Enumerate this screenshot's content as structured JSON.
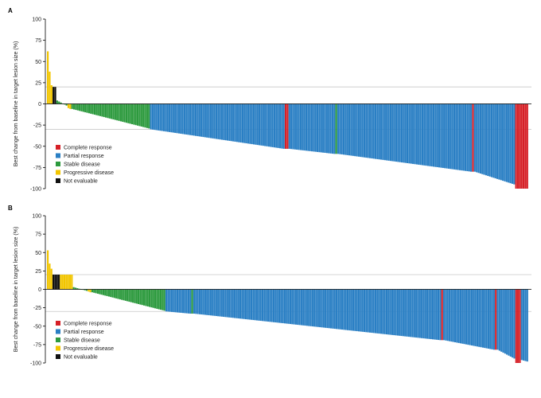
{
  "colors": {
    "complete_response": "#d62027",
    "partial_response": "#2a7fc4",
    "stable_disease": "#2d9a3e",
    "progressive_disease": "#f2c500",
    "not_evaluable": "#111111",
    "reference_line": "#c8c8c8",
    "axis": "#000000"
  },
  "legend_order": [
    "CR",
    "PR",
    "SD",
    "PD",
    "NE"
  ],
  "chart_data": [
    {
      "type": "bar",
      "panel_label": "A",
      "ylabel": "Best change from baseline in target lesion size (%)",
      "ylim": [
        -100,
        100
      ],
      "yticks": [
        100,
        75,
        50,
        25,
        0,
        -25,
        -50,
        -75,
        -100
      ],
      "reference_lines": [
        20,
        -30
      ],
      "grid": false,
      "legend_position": "bottom-left",
      "legend": [
        {
          "key": "CR",
          "label": "Complete response"
        },
        {
          "key": "PR",
          "label": "Partial response"
        },
        {
          "key": "SD",
          "label": "Stable disease"
        },
        {
          "key": "PD",
          "label": "Progressive disease"
        },
        {
          "key": "NE",
          "label": "Not evaluable"
        }
      ],
      "groups": [
        {
          "type": "PD",
          "n": 1,
          "from": 62,
          "to": 62
        },
        {
          "type": "PD",
          "n": 1,
          "from": 38,
          "to": 38
        },
        {
          "type": "PD",
          "n": 1,
          "from": 22,
          "to": 22
        },
        {
          "type": "NE",
          "n": 2,
          "from": 20,
          "to": 20
        },
        {
          "type": "SD",
          "n": 6,
          "from": 4,
          "to": -2
        },
        {
          "type": "PD",
          "n": 2,
          "from": -5,
          "to": -6
        },
        {
          "type": "SD",
          "n": 42,
          "from": -6,
          "to": -29
        },
        {
          "type": "PR",
          "n": 72,
          "from": -30,
          "to": -53
        },
        {
          "type": "CR",
          "n": 2,
          "from": -53,
          "to": -53
        },
        {
          "type": "PR",
          "n": 25,
          "from": -53,
          "to": -59
        },
        {
          "type": "SD",
          "n": 1,
          "from": -59,
          "to": -59
        },
        {
          "type": "PR",
          "n": 72,
          "from": -59,
          "to": -80
        },
        {
          "type": "CR",
          "n": 1,
          "from": -80,
          "to": -80
        },
        {
          "type": "PR",
          "n": 22,
          "from": -80,
          "to": -95
        },
        {
          "type": "CR",
          "n": 7,
          "from": -100,
          "to": -100
        }
      ]
    },
    {
      "type": "bar",
      "panel_label": "B",
      "ylabel": "Best change from baseline in target lesion size (%)",
      "ylim": [
        -100,
        100
      ],
      "yticks": [
        100,
        75,
        50,
        25,
        0,
        -25,
        -50,
        -75,
        -100
      ],
      "reference_lines": [
        20,
        -30
      ],
      "grid": false,
      "legend_position": "bottom-left",
      "legend": [
        {
          "key": "CR",
          "label": "Complete response"
        },
        {
          "key": "PR",
          "label": "Partial response"
        },
        {
          "key": "SD",
          "label": "Stable disease"
        },
        {
          "key": "PD",
          "label": "Progressive disease"
        },
        {
          "key": "NE",
          "label": "Not evaluable"
        }
      ],
      "groups": [
        {
          "type": "PD",
          "n": 1,
          "from": 53,
          "to": 53
        },
        {
          "type": "PD",
          "n": 1,
          "from": 35,
          "to": 35
        },
        {
          "type": "PD",
          "n": 1,
          "from": 28,
          "to": 28
        },
        {
          "type": "NE",
          "n": 4,
          "from": 20,
          "to": 20
        },
        {
          "type": "PD",
          "n": 7,
          "from": 20,
          "to": 20
        },
        {
          "type": "SD",
          "n": 8,
          "from": 3,
          "to": -2
        },
        {
          "type": "PD",
          "n": 2,
          "from": -3,
          "to": -4
        },
        {
          "type": "SD",
          "n": 40,
          "from": -4,
          "to": -29
        },
        {
          "type": "PR",
          "n": 14,
          "from": -30,
          "to": -33
        },
        {
          "type": "SD",
          "n": 1,
          "from": -33,
          "to": -33
        },
        {
          "type": "PR",
          "n": 134,
          "from": -33,
          "to": -69
        },
        {
          "type": "CR",
          "n": 1,
          "from": -69,
          "to": -69
        },
        {
          "type": "PR",
          "n": 28,
          "from": -69,
          "to": -82
        },
        {
          "type": "CR",
          "n": 1,
          "from": -82,
          "to": -82
        },
        {
          "type": "PR",
          "n": 10,
          "from": -82,
          "to": -94
        },
        {
          "type": "CR",
          "n": 3,
          "from": -100,
          "to": -100
        },
        {
          "type": "PR",
          "n": 4,
          "from": -96,
          "to": -98
        }
      ]
    }
  ]
}
